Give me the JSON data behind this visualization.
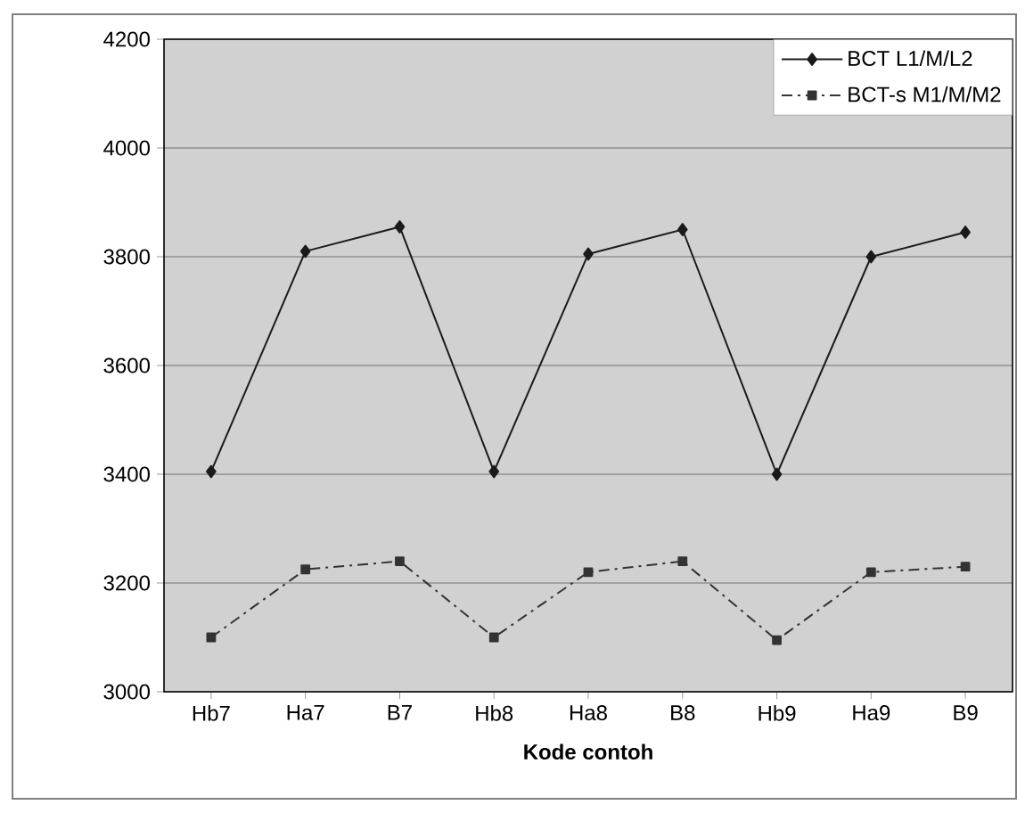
{
  "chart_data": {
    "type": "line",
    "xlabel": "Kode contoh",
    "categories": [
      "Hb7",
      "Ha7",
      "B7",
      "Hb8",
      "Ha8",
      "B8",
      "Hb9",
      "Ha9",
      "B9"
    ],
    "series": [
      {
        "name": "BCT L1/M/L2",
        "color": "#1a1a1a",
        "marker": "diamond",
        "line_style": "solid",
        "values": [
          3405,
          3810,
          3855,
          3405,
          3805,
          3850,
          3400,
          3800,
          3845
        ]
      },
      {
        "name": "BCT-s M1/M/M2",
        "color": "#333333",
        "marker": "square",
        "line_style": "dashed",
        "values": [
          3100,
          3225,
          3240,
          3100,
          3220,
          3240,
          3095,
          3220,
          3230
        ]
      }
    ],
    "ylim": [
      3000,
      4200
    ],
    "yticks": [
      3000,
      3200,
      3400,
      3600,
      3800,
      4000,
      4200
    ],
    "grid": "y",
    "legend": "top right"
  }
}
